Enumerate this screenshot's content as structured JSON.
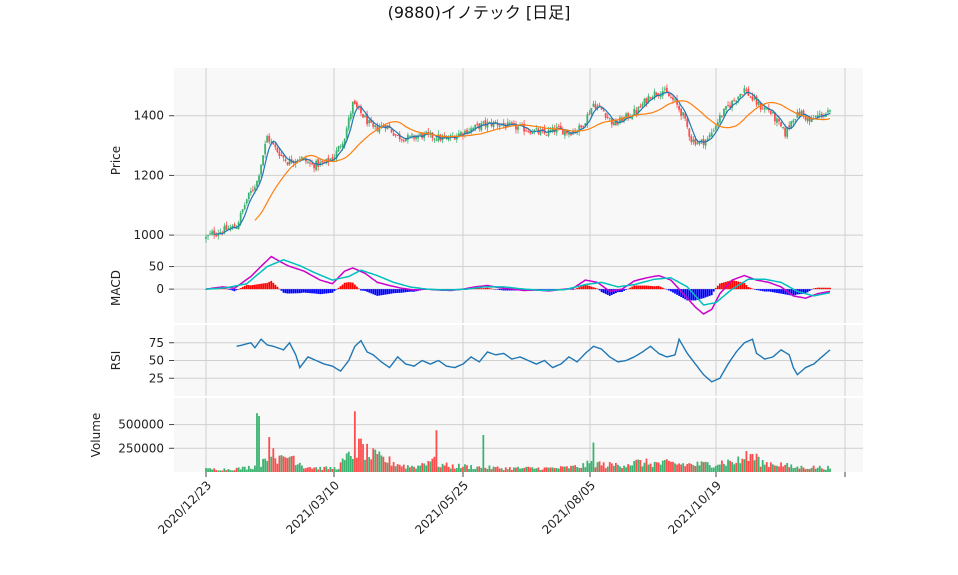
{
  "chart_data": {
    "type": "candlestick",
    "title": "(9880)イノテック [日足]",
    "x_tick_labels": [
      "2020/12/23",
      "2021/03/10",
      "2021/05/25",
      "2021/08/05",
      "2021/10/19"
    ],
    "panels": [
      {
        "key": "price",
        "ylabel": "Price",
        "ylim": [
          940,
          1560
        ],
        "ticks": [
          "1000",
          "1200",
          "1400"
        ],
        "tick_values": [
          1000,
          1200,
          1400
        ]
      },
      {
        "key": "macd",
        "ylabel": "MACD",
        "ylim": [
          -75,
          80
        ],
        "ticks": [
          "0",
          "50"
        ],
        "tick_values": [
          0,
          50
        ]
      },
      {
        "key": "rsi",
        "ylabel": "RSI",
        "ylim": [
          0,
          100
        ],
        "ticks": [
          "25",
          "50",
          "75"
        ],
        "tick_values": [
          25,
          50,
          75
        ]
      },
      {
        "key": "volume",
        "ylabel": "Volume",
        "ylim": [
          0,
          780000
        ],
        "ticks": [
          "250000",
          "500000"
        ],
        "tick_values": [
          250000,
          500000
        ]
      }
    ],
    "colors": {
      "up": "#3cb371",
      "down": "#ff4d4d",
      "ma_short": "#1f77b4",
      "ma_long": "#ff7f0e",
      "macd": "#cc00cc",
      "signal": "#00bfbf",
      "hist_pos": "#ff0000",
      "hist_neg": "#0000ff",
      "rsi": "#1f77b4",
      "grid": "#d0d0d0",
      "bg": "#f8f8f8"
    },
    "price_keypoints": [
      [
        0,
        990
      ],
      [
        3,
        1005
      ],
      [
        8,
        1015
      ],
      [
        15,
        1030
      ],
      [
        20,
        1120
      ],
      [
        25,
        1180
      ],
      [
        30,
        1330
      ],
      [
        34,
        1290
      ],
      [
        40,
        1245
      ],
      [
        46,
        1260
      ],
      [
        52,
        1235
      ],
      [
        58,
        1240
      ],
      [
        63,
        1265
      ],
      [
        68,
        1330
      ],
      [
        72,
        1440
      ],
      [
        77,
        1400
      ],
      [
        82,
        1355
      ],
      [
        88,
        1370
      ],
      [
        94,
        1330
      ],
      [
        100,
        1325
      ],
      [
        106,
        1335
      ],
      [
        112,
        1330
      ],
      [
        118,
        1320
      ],
      [
        124,
        1340
      ],
      [
        130,
        1355
      ],
      [
        136,
        1370
      ],
      [
        142,
        1375
      ],
      [
        148,
        1365
      ],
      [
        154,
        1360
      ],
      [
        160,
        1350
      ],
      [
        166,
        1340
      ],
      [
        172,
        1355
      ],
      [
        178,
        1345
      ],
      [
        184,
        1360
      ],
      [
        190,
        1440
      ],
      [
        195,
        1415
      ],
      [
        200,
        1370
      ],
      [
        206,
        1395
      ],
      [
        212,
        1420
      ],
      [
        218,
        1470
      ],
      [
        224,
        1485
      ],
      [
        230,
        1445
      ],
      [
        234,
        1400
      ],
      [
        238,
        1320
      ],
      [
        242,
        1310
      ],
      [
        246,
        1320
      ],
      [
        252,
        1395
      ],
      [
        256,
        1430
      ],
      [
        260,
        1460
      ],
      [
        264,
        1490
      ],
      [
        268,
        1455
      ],
      [
        272,
        1430
      ],
      [
        276,
        1420
      ],
      [
        280,
        1380
      ],
      [
        284,
        1340
      ],
      [
        288,
        1395
      ],
      [
        292,
        1410
      ],
      [
        296,
        1380
      ],
      [
        300,
        1400
      ],
      [
        306,
        1410
      ]
    ],
    "macd_keypoints": [
      [
        0,
        0
      ],
      [
        8,
        5
      ],
      [
        14,
        2
      ],
      [
        22,
        28
      ],
      [
        28,
        55
      ],
      [
        32,
        72
      ],
      [
        40,
        52
      ],
      [
        48,
        40
      ],
      [
        56,
        20
      ],
      [
        62,
        12
      ],
      [
        68,
        40
      ],
      [
        72,
        47
      ],
      [
        78,
        35
      ],
      [
        84,
        15
      ],
      [
        90,
        8
      ],
      [
        96,
        2
      ],
      [
        102,
        -2
      ],
      [
        108,
        0
      ],
      [
        114,
        -2
      ],
      [
        120,
        -3
      ],
      [
        126,
        0
      ],
      [
        132,
        5
      ],
      [
        138,
        8
      ],
      [
        144,
        3
      ],
      [
        150,
        0
      ],
      [
        156,
        -3
      ],
      [
        162,
        -2
      ],
      [
        168,
        -4
      ],
      [
        174,
        -1
      ],
      [
        180,
        2
      ],
      [
        186,
        20
      ],
      [
        192,
        15
      ],
      [
        198,
        -5
      ],
      [
        204,
        0
      ],
      [
        210,
        18
      ],
      [
        216,
        25
      ],
      [
        222,
        30
      ],
      [
        228,
        20
      ],
      [
        234,
        -10
      ],
      [
        240,
        -40
      ],
      [
        244,
        -55
      ],
      [
        248,
        -45
      ],
      [
        252,
        -10
      ],
      [
        258,
        20
      ],
      [
        264,
        30
      ],
      [
        270,
        20
      ],
      [
        276,
        15
      ],
      [
        282,
        5
      ],
      [
        288,
        -15
      ],
      [
        294,
        -20
      ],
      [
        300,
        -10
      ],
      [
        306,
        -5
      ]
    ],
    "signal_keypoints": [
      [
        0,
        0
      ],
      [
        10,
        3
      ],
      [
        20,
        12
      ],
      [
        30,
        50
      ],
      [
        38,
        65
      ],
      [
        46,
        52
      ],
      [
        54,
        35
      ],
      [
        62,
        20
      ],
      [
        70,
        28
      ],
      [
        76,
        42
      ],
      [
        84,
        30
      ],
      [
        92,
        15
      ],
      [
        100,
        5
      ],
      [
        108,
        0
      ],
      [
        118,
        -2
      ],
      [
        128,
        0
      ],
      [
        136,
        5
      ],
      [
        146,
        5
      ],
      [
        156,
        0
      ],
      [
        166,
        -3
      ],
      [
        176,
        -1
      ],
      [
        186,
        10
      ],
      [
        194,
        15
      ],
      [
        202,
        5
      ],
      [
        210,
        10
      ],
      [
        220,
        22
      ],
      [
        228,
        25
      ],
      [
        236,
        5
      ],
      [
        244,
        -35
      ],
      [
        250,
        -30
      ],
      [
        258,
        0
      ],
      [
        266,
        22
      ],
      [
        274,
        22
      ],
      [
        282,
        15
      ],
      [
        290,
        -5
      ],
      [
        298,
        -15
      ],
      [
        306,
        -8
      ]
    ],
    "rsi_keypoints": [
      [
        15,
        70
      ],
      [
        18,
        72
      ],
      [
        22,
        75
      ],
      [
        24,
        68
      ],
      [
        27,
        80
      ],
      [
        30,
        72
      ],
      [
        33,
        70
      ],
      [
        38,
        65
      ],
      [
        41,
        75
      ],
      [
        44,
        58
      ],
      [
        46,
        40
      ],
      [
        50,
        55
      ],
      [
        54,
        50
      ],
      [
        58,
        45
      ],
      [
        62,
        42
      ],
      [
        66,
        35
      ],
      [
        70,
        50
      ],
      [
        73,
        70
      ],
      [
        76,
        78
      ],
      [
        79,
        62
      ],
      [
        82,
        58
      ],
      [
        86,
        48
      ],
      [
        90,
        40
      ],
      [
        94,
        55
      ],
      [
        98,
        45
      ],
      [
        102,
        42
      ],
      [
        106,
        50
      ],
      [
        110,
        45
      ],
      [
        114,
        50
      ],
      [
        118,
        42
      ],
      [
        122,
        40
      ],
      [
        126,
        45
      ],
      [
        130,
        55
      ],
      [
        134,
        48
      ],
      [
        138,
        62
      ],
      [
        142,
        58
      ],
      [
        146,
        60
      ],
      [
        150,
        52
      ],
      [
        154,
        55
      ],
      [
        158,
        50
      ],
      [
        162,
        45
      ],
      [
        166,
        50
      ],
      [
        170,
        40
      ],
      [
        174,
        45
      ],
      [
        178,
        55
      ],
      [
        182,
        48
      ],
      [
        186,
        60
      ],
      [
        190,
        70
      ],
      [
        194,
        66
      ],
      [
        198,
        55
      ],
      [
        202,
        48
      ],
      [
        206,
        50
      ],
      [
        210,
        55
      ],
      [
        214,
        62
      ],
      [
        218,
        70
      ],
      [
        222,
        60
      ],
      [
        226,
        55
      ],
      [
        230,
        58
      ],
      [
        232,
        80
      ],
      [
        236,
        60
      ],
      [
        240,
        45
      ],
      [
        244,
        30
      ],
      [
        248,
        20
      ],
      [
        252,
        25
      ],
      [
        256,
        45
      ],
      [
        260,
        62
      ],
      [
        264,
        75
      ],
      [
        268,
        80
      ],
      [
        270,
        60
      ],
      [
        274,
        52
      ],
      [
        278,
        55
      ],
      [
        282,
        65
      ],
      [
        286,
        58
      ],
      [
        288,
        40
      ],
      [
        290,
        30
      ],
      [
        294,
        40
      ],
      [
        298,
        45
      ],
      [
        302,
        55
      ],
      [
        306,
        65
      ]
    ],
    "volume_keypoints": [
      [
        0,
        30000
      ],
      [
        12,
        30000
      ],
      [
        18,
        40000
      ],
      [
        24,
        60000
      ],
      [
        28,
        120000
      ],
      [
        32,
        300000
      ],
      [
        36,
        120000
      ],
      [
        42,
        180000
      ],
      [
        48,
        60000
      ],
      [
        56,
        40000
      ],
      [
        64,
        40000
      ],
      [
        68,
        120000
      ],
      [
        72,
        200000
      ],
      [
        76,
        260000
      ],
      [
        80,
        180000
      ],
      [
        86,
        140000
      ],
      [
        92,
        100000
      ],
      [
        98,
        60000
      ],
      [
        104,
        60000
      ],
      [
        110,
        140000
      ],
      [
        114,
        80000
      ],
      [
        120,
        60000
      ],
      [
        126,
        60000
      ],
      [
        134,
        50000
      ],
      [
        140,
        45000
      ],
      [
        146,
        40000
      ],
      [
        152,
        40000
      ],
      [
        160,
        40000
      ],
      [
        168,
        40000
      ],
      [
        176,
        45000
      ],
      [
        184,
        60000
      ],
      [
        190,
        100000
      ],
      [
        196,
        70000
      ],
      [
        204,
        80000
      ],
      [
        212,
        100000
      ],
      [
        220,
        90000
      ],
      [
        228,
        90000
      ],
      [
        236,
        80000
      ],
      [
        244,
        80000
      ],
      [
        252,
        100000
      ],
      [
        260,
        110000
      ],
      [
        268,
        150000
      ],
      [
        274,
        90000
      ],
      [
        280,
        90000
      ],
      [
        288,
        50000
      ],
      [
        296,
        50000
      ],
      [
        306,
        45000
      ]
    ],
    "volume_spikes": [
      [
        25,
        620000
      ],
      [
        26,
        590000
      ],
      [
        73,
        640000
      ],
      [
        113,
        440000
      ],
      [
        136,
        390000
      ],
      [
        190,
        310000
      ],
      [
        265,
        220000
      ],
      [
        268,
        190000
      ],
      [
        271,
        160000
      ]
    ]
  }
}
